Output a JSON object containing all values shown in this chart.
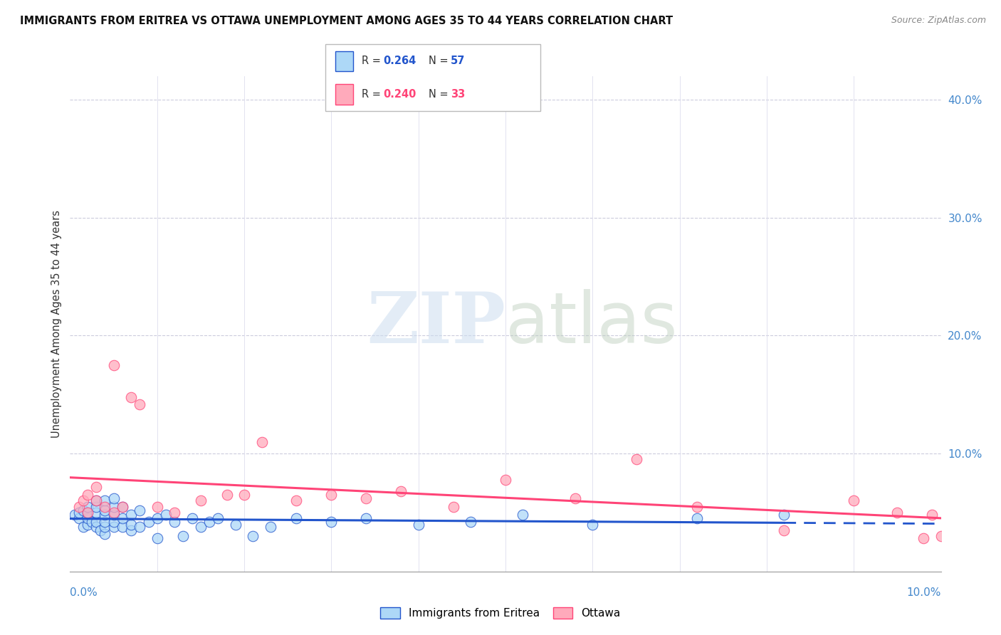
{
  "title": "IMMIGRANTS FROM ERITREA VS OTTAWA UNEMPLOYMENT AMONG AGES 35 TO 44 YEARS CORRELATION CHART",
  "source": "Source: ZipAtlas.com",
  "ylabel": "Unemployment Among Ages 35 to 44 years",
  "legend_label_eritrea": "Immigrants from Eritrea",
  "legend_label_ottawa": "Ottawa",
  "eritrea_color": "#ADD8F7",
  "ottawa_color": "#FFAABB",
  "trendline_eritrea_color": "#2255CC",
  "trendline_ottawa_color": "#FF4477",
  "background_color": "#FFFFFF",
  "eritrea_x": [
    0.0005,
    0.001,
    0.001,
    0.0015,
    0.0015,
    0.002,
    0.002,
    0.002,
    0.002,
    0.0025,
    0.003,
    0.003,
    0.003,
    0.003,
    0.003,
    0.0035,
    0.004,
    0.004,
    0.004,
    0.004,
    0.004,
    0.004,
    0.005,
    0.005,
    0.005,
    0.005,
    0.005,
    0.006,
    0.006,
    0.006,
    0.007,
    0.007,
    0.007,
    0.008,
    0.008,
    0.009,
    0.01,
    0.01,
    0.011,
    0.012,
    0.013,
    0.014,
    0.015,
    0.016,
    0.017,
    0.019,
    0.021,
    0.023,
    0.026,
    0.03,
    0.034,
    0.04,
    0.046,
    0.052,
    0.06,
    0.072,
    0.082
  ],
  "eritrea_y": [
    0.048,
    0.045,
    0.05,
    0.038,
    0.052,
    0.04,
    0.045,
    0.05,
    0.055,
    0.042,
    0.038,
    0.042,
    0.05,
    0.055,
    0.06,
    0.035,
    0.032,
    0.038,
    0.042,
    0.048,
    0.052,
    0.06,
    0.038,
    0.042,
    0.048,
    0.055,
    0.062,
    0.038,
    0.045,
    0.055,
    0.035,
    0.04,
    0.048,
    0.038,
    0.052,
    0.042,
    0.028,
    0.045,
    0.048,
    0.042,
    0.03,
    0.045,
    0.038,
    0.042,
    0.045,
    0.04,
    0.03,
    0.038,
    0.045,
    0.042,
    0.045,
    0.04,
    0.042,
    0.048,
    0.04,
    0.045,
    0.048
  ],
  "ottawa_x": [
    0.001,
    0.0015,
    0.002,
    0.002,
    0.003,
    0.003,
    0.004,
    0.005,
    0.005,
    0.006,
    0.007,
    0.008,
    0.01,
    0.012,
    0.015,
    0.018,
    0.02,
    0.022,
    0.026,
    0.03,
    0.034,
    0.038,
    0.044,
    0.05,
    0.058,
    0.065,
    0.072,
    0.082,
    0.09,
    0.095,
    0.098,
    0.099,
    0.1
  ],
  "ottawa_y": [
    0.055,
    0.06,
    0.05,
    0.065,
    0.06,
    0.072,
    0.055,
    0.05,
    0.175,
    0.055,
    0.148,
    0.142,
    0.055,
    0.05,
    0.06,
    0.065,
    0.065,
    0.11,
    0.06,
    0.065,
    0.062,
    0.068,
    0.055,
    0.078,
    0.062,
    0.095,
    0.055,
    0.035,
    0.06,
    0.05,
    0.028,
    0.048,
    0.03
  ],
  "xlim": [
    0.0,
    0.1
  ],
  "ylim": [
    0.0,
    0.42
  ],
  "yticks_right": [
    0.1,
    0.2,
    0.3,
    0.4
  ],
  "ytick_labels_right": [
    "10.0%",
    "20.0%",
    "30.0%",
    "40.0%"
  ],
  "grid_yticks": [
    0.1,
    0.2,
    0.3,
    0.4
  ],
  "grid_xticks": [
    0.01,
    0.02,
    0.03,
    0.04,
    0.05,
    0.06,
    0.07,
    0.08,
    0.09,
    0.1
  ],
  "legend_R_eritrea": "0.264",
  "legend_N_eritrea": "57",
  "legend_R_ottawa": "0.240",
  "legend_N_ottawa": "33"
}
